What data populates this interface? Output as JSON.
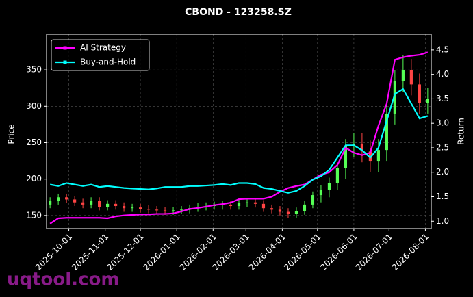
{
  "chart_data": {
    "type": "candlestick",
    "title": "CBOND - 123258.SZ",
    "ylabel": "Price",
    "y2label": "Return",
    "watermark": "uqtool.com",
    "x": [
      "2025-09-15",
      "2025-09-22",
      "2025-09-29",
      "2025-10-06",
      "2025-10-13",
      "2025-10-20",
      "2025-10-27",
      "2025-11-03",
      "2025-11-10",
      "2025-11-17",
      "2025-11-24",
      "2025-12-01",
      "2025-12-08",
      "2025-12-15",
      "2025-12-22",
      "2025-12-29",
      "2026-01-05",
      "2026-01-12",
      "2026-01-19",
      "2026-01-26",
      "2026-02-02",
      "2026-02-09",
      "2026-02-16",
      "2026-02-23",
      "2026-03-02",
      "2026-03-09",
      "2026-03-16",
      "2026-03-23",
      "2026-03-30",
      "2026-04-06",
      "2026-04-13",
      "2026-04-20",
      "2026-04-27",
      "2026-05-04",
      "2026-05-11",
      "2026-05-18",
      "2026-05-25",
      "2026-06-01",
      "2026-06-08",
      "2026-06-15",
      "2026-06-22",
      "2026-06-29",
      "2026-07-06",
      "2026-07-13",
      "2026-07-20",
      "2026-07-27",
      "2026-08-03"
    ],
    "open": [
      165,
      170,
      175,
      172,
      168,
      165,
      170,
      162,
      166,
      163,
      160,
      161,
      159,
      158,
      157,
      156,
      157,
      158,
      160,
      162,
      163,
      164,
      165,
      163,
      167,
      168,
      166,
      160,
      158,
      155,
      152,
      156,
      165,
      178,
      185,
      195,
      215,
      245,
      248,
      238,
      225,
      240,
      290,
      335,
      350,
      330,
      305
    ],
    "high": [
      175,
      180,
      180,
      177,
      173,
      175,
      175,
      171,
      171,
      168,
      166,
      166,
      164,
      163,
      162,
      162,
      163,
      165,
      167,
      168,
      169,
      170,
      170,
      172,
      173,
      173,
      171,
      165,
      163,
      160,
      161,
      170,
      183,
      192,
      202,
      222,
      255,
      263,
      263,
      253,
      255,
      305,
      350,
      370,
      365,
      345,
      325
    ],
    "low": [
      160,
      165,
      167,
      163,
      160,
      160,
      157,
      157,
      158,
      155,
      155,
      154,
      153,
      152,
      151,
      151,
      152,
      153,
      155,
      157,
      158,
      158,
      158,
      158,
      162,
      161,
      155,
      153,
      150,
      147,
      147,
      151,
      160,
      168,
      175,
      185,
      200,
      230,
      223,
      210,
      210,
      225,
      275,
      320,
      315,
      290,
      290
    ],
    "close": [
      170,
      175,
      172,
      168,
      165,
      170,
      162,
      166,
      163,
      160,
      161,
      159,
      158,
      157,
      156,
      157,
      158,
      160,
      162,
      163,
      164,
      165,
      163,
      167,
      168,
      166,
      160,
      158,
      155,
      152,
      156,
      165,
      178,
      185,
      195,
      215,
      245,
      248,
      238,
      225,
      240,
      290,
      335,
      350,
      330,
      305,
      310
    ],
    "up_color": "#55ff55",
    "down_color": "#ff4444",
    "series": [
      {
        "name": "AI Strategy",
        "color": "#ff00ff",
        "axis": "y2",
        "values": [
          0.95,
          1.06,
          1.07,
          1.07,
          1.07,
          1.07,
          1.07,
          1.06,
          1.1,
          1.12,
          1.13,
          1.14,
          1.14,
          1.15,
          1.15,
          1.16,
          1.2,
          1.25,
          1.27,
          1.3,
          1.33,
          1.35,
          1.38,
          1.45,
          1.46,
          1.46,
          1.46,
          1.5,
          1.6,
          1.68,
          1.72,
          1.75,
          1.85,
          1.95,
          2.0,
          2.15,
          2.5,
          2.4,
          2.35,
          2.4,
          2.95,
          3.4,
          4.3,
          4.35,
          4.38,
          4.4,
          4.45
        ]
      },
      {
        "name": "Buy-and-Hold",
        "color": "#00ffff",
        "axis": "y2",
        "values": [
          1.75,
          1.72,
          1.78,
          1.75,
          1.72,
          1.75,
          1.7,
          1.72,
          1.7,
          1.68,
          1.67,
          1.66,
          1.65,
          1.67,
          1.7,
          1.7,
          1.7,
          1.72,
          1.72,
          1.73,
          1.74,
          1.76,
          1.74,
          1.78,
          1.78,
          1.76,
          1.68,
          1.66,
          1.62,
          1.58,
          1.62,
          1.72,
          1.85,
          1.92,
          2.05,
          2.3,
          2.55,
          2.55,
          2.45,
          2.3,
          2.5,
          3.05,
          3.6,
          3.7,
          3.4,
          3.1,
          3.15
        ]
      }
    ],
    "xlim": [
      "2025-09-12",
      "2026-08-06"
    ],
    "xticks": [
      "2025-10-01",
      "2025-11-01",
      "2025-12-01",
      "2026-01-01",
      "2026-02-01",
      "2026-03-01",
      "2026-04-01",
      "2026-05-01",
      "2026-06-01",
      "2026-07-01",
      "2026-08-01"
    ],
    "ylim": [
      132,
      399
    ],
    "yticks": [
      150,
      200,
      250,
      300,
      350
    ],
    "y2lim": [
      0.85,
      4.82
    ],
    "y2ticks": [
      {
        "value": 1,
        "label": "1.0"
      },
      1.5,
      {
        "value": 2,
        "label": "2.0"
      },
      2.5,
      {
        "value": 3,
        "label": "3.0"
      },
      3.5,
      {
        "value": 4,
        "label": "4.0"
      },
      4.5
    ],
    "grid": true,
    "legend": "upper left"
  }
}
